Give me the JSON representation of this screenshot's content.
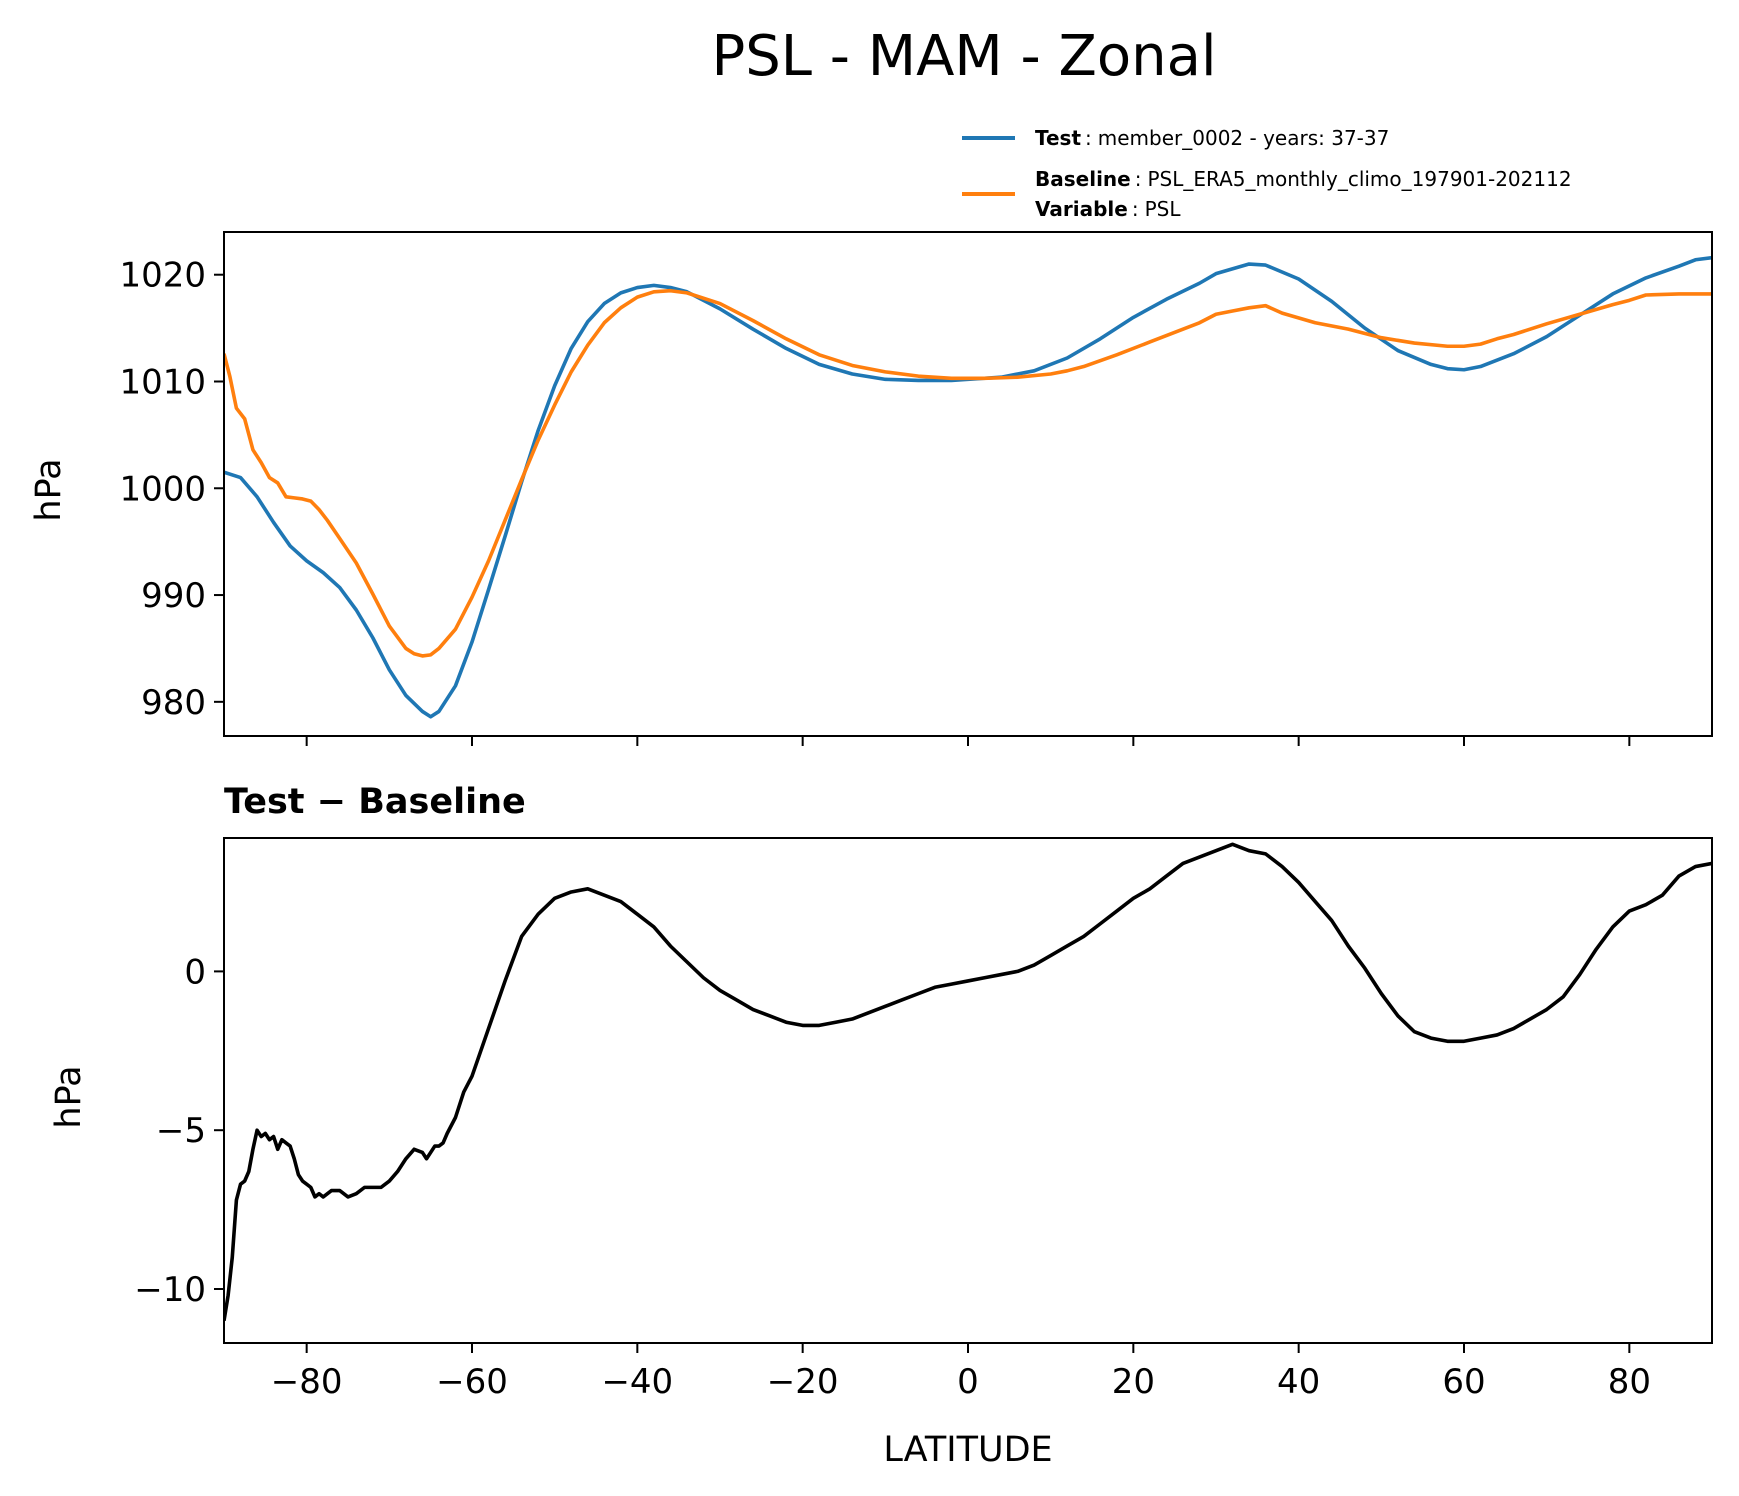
{
  "chart_data": {
    "type": "line",
    "title": "PSL - MAM - Zonal",
    "xlabel": "LATITUDE",
    "xlim": [
      -90,
      90
    ],
    "xticks": [
      -80,
      -60,
      -40,
      -20,
      0,
      20,
      40,
      60,
      80
    ],
    "xtick_labels": [
      "−80",
      "−60",
      "−40",
      "−20",
      "0",
      "20",
      "40",
      "60",
      "80"
    ],
    "legend": {
      "placement": "top-right above plot",
      "entries": [
        {
          "key": "Test",
          "value": "member_0002 - years: 37-37",
          "color": "#1f77b4"
        },
        {
          "key": "Baseline",
          "value": "PSL_ERA5_monthly_climo_197901-202112",
          "color": "#ff7f0e"
        },
        {
          "key": "Variable",
          "value": "PSL",
          "color": ""
        }
      ]
    },
    "panels": [
      {
        "name": "zonal-mean",
        "ylabel": "hPa",
        "ylim": [
          976.8,
          1024
        ],
        "yticks": [
          980,
          990,
          1000,
          1010,
          1020
        ],
        "ytick_labels": [
          "980",
          "990",
          "1000",
          "1010",
          "1020"
        ],
        "series": [
          {
            "name": "Test",
            "color": "#1f77b4",
            "x": [
              -90,
              -88,
              -86,
              -84,
              -82,
              -80,
              -78,
              -76,
              -74,
              -72,
              -70,
              -68,
              -66,
              -65,
              -64,
              -62,
              -60,
              -58,
              -56,
              -54,
              -52,
              -50,
              -48,
              -46,
              -44,
              -42,
              -40,
              -38,
              -36,
              -34,
              -30,
              -26,
              -22,
              -18,
              -14,
              -10,
              -6,
              -2,
              0,
              4,
              8,
              12,
              16,
              20,
              24,
              28,
              30,
              34,
              36,
              40,
              44,
              48,
              52,
              56,
              58,
              60,
              62,
              66,
              70,
              74,
              78,
              82,
              86,
              88,
              90
            ],
            "values": [
              1001.5,
              1001,
              999.2,
              996.8,
              994.6,
              993.2,
              992.1,
              990.7,
              988.6,
              986,
              983,
              980.6,
              979.1,
              978.6,
              979.1,
              981.5,
              985.6,
              990.5,
              995.5,
              1000.6,
              1005.4,
              1009.6,
              1013.1,
              1015.6,
              1017.3,
              1018.3,
              1018.8,
              1019,
              1018.8,
              1018.4,
              1016.8,
              1014.9,
              1013.1,
              1011.6,
              1010.7,
              1010.2,
              1010.1,
              1010.1,
              1010.2,
              1010.4,
              1011,
              1012.2,
              1014,
              1016,
              1017.7,
              1019.2,
              1020.1,
              1021,
              1020.9,
              1019.6,
              1017.5,
              1015,
              1012.9,
              1011.6,
              1011.2,
              1011.1,
              1011.4,
              1012.6,
              1014.2,
              1016.2,
              1018.2,
              1019.7,
              1020.8,
              1021.4,
              1021.6
            ]
          },
          {
            "name": "Baseline",
            "color": "#ff7f0e",
            "x": [
              -90,
              -89.3,
              -88.5,
              -87.5,
              -86.5,
              -85.5,
              -84.5,
              -83.5,
              -82.5,
              -81.5,
              -80.5,
              -79.5,
              -78.5,
              -77.5,
              -76,
              -74,
              -72,
              -70,
              -68,
              -67,
              -66,
              -65,
              -64,
              -62,
              -60,
              -58,
              -56,
              -54,
              -52,
              -50,
              -48,
              -46,
              -44,
              -42,
              -40,
              -38,
              -36,
              -34,
              -30,
              -26,
              -22,
              -18,
              -14,
              -10,
              -6,
              -2,
              2,
              6,
              10,
              12,
              14,
              18,
              22,
              26,
              28,
              30,
              32,
              34,
              36,
              38,
              42,
              46,
              50,
              54,
              58,
              60,
              62,
              64,
              66,
              70,
              74,
              78,
              80,
              82,
              86,
              90
            ],
            "values": [
              1012.6,
              1010.5,
              1007.5,
              1006.5,
              1003.6,
              1002.4,
              1001,
              1000.5,
              999.2,
              999.1,
              999,
              998.8,
              998,
              997,
              995.3,
              993,
              990.1,
              987.1,
              985,
              984.5,
              984.3,
              984.4,
              985,
              986.8,
              989.8,
              993.2,
              997,
              1000.8,
              1004.5,
              1007.8,
              1010.9,
              1013.4,
              1015.5,
              1016.9,
              1017.9,
              1018.4,
              1018.5,
              1018.3,
              1017.3,
              1015.7,
              1014,
              1012.5,
              1011.5,
              1010.9,
              1010.5,
              1010.3,
              1010.3,
              1010.4,
              1010.7,
              1011,
              1011.4,
              1012.5,
              1013.7,
              1014.9,
              1015.5,
              1016.3,
              1016.6,
              1016.9,
              1017.1,
              1016.4,
              1015.5,
              1014.9,
              1014.1,
              1013.6,
              1013.3,
              1013.3,
              1013.5,
              1014,
              1014.4,
              1015.4,
              1016.3,
              1017.2,
              1017.6,
              1018.1,
              1018.2,
              1018.2
            ]
          }
        ]
      },
      {
        "name": "difference",
        "title": "Test − Baseline",
        "ylabel": "hPa",
        "ylim": [
          -11.7,
          4.2
        ],
        "yticks": [
          -10,
          -5,
          0
        ],
        "ytick_labels": [
          "−10",
          "−5",
          "0"
        ],
        "series": [
          {
            "name": "Test - Baseline",
            "color": "#000000",
            "x": [
              -90,
              -89.5,
              -89,
              -88.5,
              -88,
              -87.5,
              -87,
              -86.5,
              -86,
              -85.5,
              -85,
              -84.5,
              -84,
              -83.5,
              -83,
              -82.5,
              -82,
              -81.5,
              -81,
              -80.5,
              -80,
              -79.5,
              -79,
              -78.5,
              -78,
              -77,
              -76,
              -75,
              -74,
              -73,
              -72,
              -71,
              -70,
              -69,
              -68,
              -67,
              -66,
              -65.5,
              -65,
              -64.5,
              -64,
              -63.5,
              -63,
              -62,
              -61,
              -60,
              -58,
              -56,
              -54,
              -52,
              -50,
              -48,
              -46,
              -44,
              -42,
              -40,
              -38,
              -36,
              -34,
              -32,
              -30,
              -28,
              -26,
              -24,
              -22,
              -20,
              -18,
              -16,
              -14,
              -12,
              -10,
              -8,
              -6,
              -4,
              -2,
              0,
              2,
              4,
              6,
              8,
              10,
              12,
              14,
              16,
              18,
              20,
              22,
              24,
              26,
              28,
              30,
              32,
              34,
              36,
              38,
              40,
              42,
              44,
              46,
              48,
              50,
              52,
              54,
              56,
              58,
              60,
              62,
              64,
              66,
              68,
              70,
              72,
              74,
              76,
              78,
              80,
              82,
              84,
              86,
              88,
              90
            ],
            "values": [
              -11,
              -10.2,
              -9,
              -7.2,
              -6.7,
              -6.6,
              -6.3,
              -5.6,
              -5,
              -5.2,
              -5.1,
              -5.3,
              -5.2,
              -5.6,
              -5.3,
              -5.4,
              -5.5,
              -5.9,
              -6.4,
              -6.6,
              -6.7,
              -6.8,
              -7.1,
              -7,
              -7.1,
              -6.9,
              -6.9,
              -7.1,
              -7,
              -6.8,
              -6.8,
              -6.8,
              -6.6,
              -6.3,
              -5.9,
              -5.6,
              -5.7,
              -5.9,
              -5.7,
              -5.5,
              -5.5,
              -5.4,
              -5.1,
              -4.6,
              -3.8,
              -3.3,
              -1.8,
              -0.3,
              1.1,
              1.8,
              2.3,
              2.5,
              2.6,
              2.4,
              2.2,
              1.8,
              1.4,
              0.8,
              0.3,
              -0.2,
              -0.6,
              -0.9,
              -1.2,
              -1.4,
              -1.6,
              -1.7,
              -1.7,
              -1.6,
              -1.5,
              -1.3,
              -1.1,
              -0.9,
              -0.7,
              -0.5,
              -0.4,
              -0.3,
              -0.2,
              -0.1,
              0,
              0.2,
              0.5,
              0.8,
              1.1,
              1.5,
              1.9,
              2.3,
              2.6,
              3,
              3.4,
              3.6,
              3.8,
              4,
              3.8,
              3.7,
              3.3,
              2.8,
              2.2,
              1.6,
              0.8,
              0.1,
              -0.7,
              -1.4,
              -1.9,
              -2.1,
              -2.2,
              -2.2,
              -2.1,
              -2,
              -1.8,
              -1.5,
              -1.2,
              -0.8,
              -0.1,
              0.7,
              1.4,
              1.9,
              2.1,
              2.4,
              3,
              3.3,
              3.4
            ]
          }
        ]
      }
    ]
  }
}
